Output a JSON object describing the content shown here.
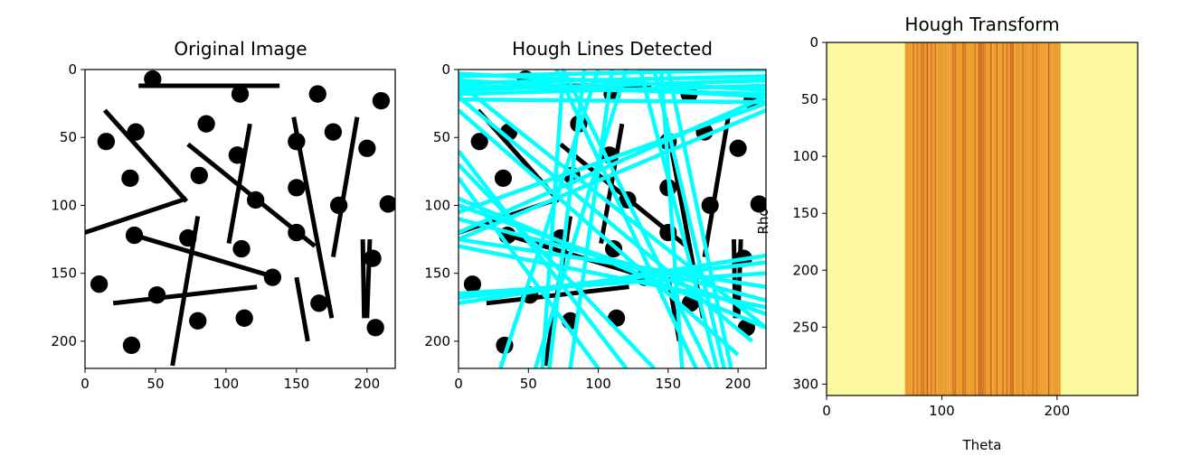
{
  "figure": {
    "panels": [
      {
        "title": "Original Image",
        "xlabel": "",
        "ylabel": ""
      },
      {
        "title": "Hough Lines Detected",
        "xlabel": "",
        "ylabel": ""
      },
      {
        "title": "Hough Transform",
        "xlabel": "Theta",
        "ylabel": "Rho"
      }
    ]
  },
  "colors": {
    "shape": "#000000",
    "hough_line": "#00ffff",
    "accumulator_background": "#fcf9a0",
    "accumulator_band": "#e9952c",
    "accumulator_band_dark": "#a8361f"
  },
  "chart_data": [
    {
      "type": "image",
      "title": "Original Image",
      "xlim": [
        0,
        220
      ],
      "ylim": [
        220,
        0
      ],
      "xticks": [
        0,
        50,
        100,
        150,
        200
      ],
      "yticks": [
        0,
        50,
        100,
        150,
        200
      ],
      "circles": [
        [
          48,
          7
        ],
        [
          110,
          18
        ],
        [
          165,
          18
        ],
        [
          210,
          23
        ],
        [
          15,
          53
        ],
        [
          36,
          46
        ],
        [
          86,
          40
        ],
        [
          176,
          46
        ],
        [
          150,
          53
        ],
        [
          200,
          58
        ],
        [
          108,
          63
        ],
        [
          32,
          80
        ],
        [
          81,
          78
        ],
        [
          150,
          87
        ],
        [
          121,
          96
        ],
        [
          180,
          100
        ],
        [
          215,
          99
        ],
        [
          35,
          122
        ],
        [
          73,
          124
        ],
        [
          111,
          132
        ],
        [
          150,
          120
        ],
        [
          204,
          139
        ],
        [
          133,
          153
        ],
        [
          10,
          158
        ],
        [
          51,
          166
        ],
        [
          166,
          172
        ],
        [
          80,
          185
        ],
        [
          113,
          183
        ],
        [
          206,
          190
        ],
        [
          33,
          203
        ]
      ],
      "segments": [
        [
          38,
          12,
          138,
          12
        ],
        [
          14,
          30,
          72,
          97
        ],
        [
          0,
          120,
          72,
          95
        ],
        [
          73,
          55,
          163,
          130
        ],
        [
          117,
          40,
          102,
          128
        ],
        [
          148,
          35,
          175,
          183
        ],
        [
          193,
          35,
          176,
          138
        ],
        [
          32,
          121,
          132,
          152
        ],
        [
          20,
          172,
          122,
          160
        ],
        [
          80,
          108,
          62,
          218
        ],
        [
          150,
          153,
          158,
          200
        ],
        [
          197,
          125,
          198,
          183
        ],
        [
          202,
          125,
          200,
          183
        ]
      ]
    },
    {
      "type": "image",
      "title": "Hough Lines Detected",
      "xlim": [
        0,
        220
      ],
      "ylim": [
        220,
        0
      ],
      "xticks": [
        0,
        50,
        100,
        150,
        200
      ],
      "yticks": [
        0,
        50,
        100,
        150,
        200
      ],
      "detected_lines": [
        [
          0,
          5,
          220,
          0
        ],
        [
          0,
          10,
          220,
          5
        ],
        [
          0,
          15,
          220,
          8
        ],
        [
          0,
          18,
          220,
          12
        ],
        [
          0,
          8,
          220,
          20
        ],
        [
          0,
          3,
          220,
          15
        ],
        [
          0,
          22,
          220,
          24
        ],
        [
          0,
          12,
          220,
          18
        ],
        [
          0,
          10,
          220,
          190
        ],
        [
          0,
          20,
          210,
          200
        ],
        [
          0,
          30,
          200,
          210
        ],
        [
          0,
          95,
          220,
          190
        ],
        [
          0,
          110,
          220,
          170
        ],
        [
          0,
          125,
          220,
          160
        ],
        [
          0,
          100,
          220,
          180
        ],
        [
          0,
          130,
          220,
          175
        ],
        [
          0,
          172,
          220,
          137
        ],
        [
          0,
          168,
          220,
          142
        ],
        [
          0,
          165,
          220,
          150
        ],
        [
          0,
          120,
          220,
          20
        ],
        [
          0,
          125,
          220,
          30
        ],
        [
          0,
          105,
          220,
          25
        ],
        [
          30,
          220,
          100,
          0
        ],
        [
          55,
          220,
          120,
          0
        ],
        [
          60,
          220,
          75,
          0
        ],
        [
          65,
          220,
          90,
          0
        ],
        [
          80,
          220,
          110,
          0
        ],
        [
          70,
          0,
          170,
          220
        ],
        [
          75,
          0,
          180,
          220
        ],
        [
          130,
          0,
          185,
          220
        ],
        [
          140,
          0,
          190,
          220
        ],
        [
          145,
          0,
          160,
          220
        ],
        [
          150,
          0,
          195,
          220
        ],
        [
          0,
          70,
          140,
          220
        ],
        [
          0,
          60,
          120,
          220
        ],
        [
          0,
          80,
          100,
          220
        ]
      ]
    },
    {
      "type": "heatmap",
      "title": "Hough Transform",
      "xlabel": "Theta",
      "ylabel": "Rho",
      "xlim": [
        0,
        270
      ],
      "ylim": [
        310,
        0
      ],
      "xticks": [
        0,
        100,
        200
      ],
      "yticks": [
        0,
        50,
        100,
        150,
        200,
        250,
        300
      ],
      "nonzero_theta_range": [
        68,
        203
      ],
      "colormap": "hot_r"
    }
  ]
}
